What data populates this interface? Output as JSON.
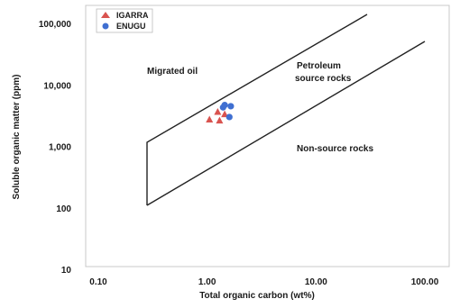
{
  "chart_data": {
    "type": "scatter",
    "title": "",
    "xlabel": "Total organic carbon (wt%)",
    "ylabel": "Soluble organic matter (ppm)",
    "x_scale": "log",
    "y_scale": "log",
    "xlim": [
      0.1,
      100
    ],
    "ylim": [
      10,
      100000
    ],
    "x_ticks": [
      "0.10",
      "1.00",
      "10.00",
      "100.00"
    ],
    "y_ticks": [
      "10",
      "100",
      "1,000",
      "10,000",
      "100,000"
    ],
    "grid": false,
    "legend_position": "top-left",
    "regions": [
      "Migrated oil",
      "Petroleum",
      "source rocks",
      "Non-source rocks"
    ],
    "series": [
      {
        "name": "IGARRA",
        "marker": "triangle",
        "color": "#d9534f",
        "points": [
          [
            1.05,
            2700
          ],
          [
            1.3,
            2600
          ],
          [
            1.25,
            3600
          ],
          [
            1.45,
            3300
          ]
        ]
      },
      {
        "name": "ENUGU",
        "marker": "circle",
        "color": "#3f6fd1",
        "points": [
          [
            1.4,
            4300
          ],
          [
            1.45,
            4700
          ],
          [
            1.65,
            4500
          ],
          [
            1.6,
            3000
          ]
        ]
      }
    ]
  }
}
